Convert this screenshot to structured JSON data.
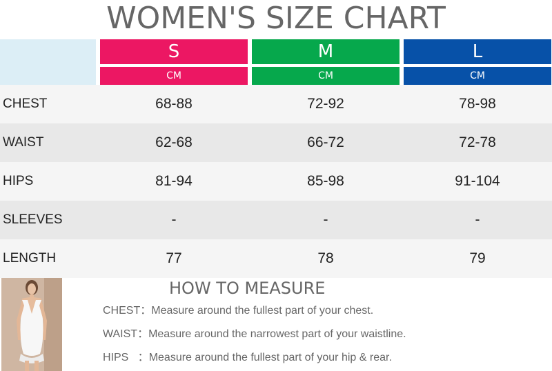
{
  "title": "WOMEN'S SIZE CHART",
  "sizes": [
    {
      "label": "S",
      "unit": "CM",
      "color": "#ec1763"
    },
    {
      "label": "M",
      "unit": "CM",
      "color": "#06a84c"
    },
    {
      "label": "L",
      "unit": "CM",
      "color": "#0751a8"
    }
  ],
  "corner_color": "#dceef6",
  "row_colors": [
    "#f5f5f5",
    "#e8e8e8"
  ],
  "rows": [
    {
      "label": "CHEST",
      "values": [
        "68-88",
        "72-92",
        "78-98"
      ]
    },
    {
      "label": "WAIST",
      "values": [
        "62-68",
        "66-72",
        "72-78"
      ]
    },
    {
      "label": "HIPS",
      "values": [
        "81-94",
        "85-98",
        "91-104"
      ]
    },
    {
      "label": "SLEEVES",
      "values": [
        "-",
        "-",
        "-"
      ]
    },
    {
      "label": "LENGTH",
      "values": [
        "77",
        "78",
        "79"
      ]
    }
  ],
  "how_to_measure": {
    "title": "HOW TO MEASURE",
    "lines": [
      {
        "key": "CHEST：",
        "text": "Measure around the fullest part of your chest."
      },
      {
        "key": "WAIST：",
        "text": "Measure around the narrowest part of your waistline."
      },
      {
        "key": "HIPS   ：",
        "text": "Measure around the fullest part of your hip & rear."
      }
    ]
  }
}
